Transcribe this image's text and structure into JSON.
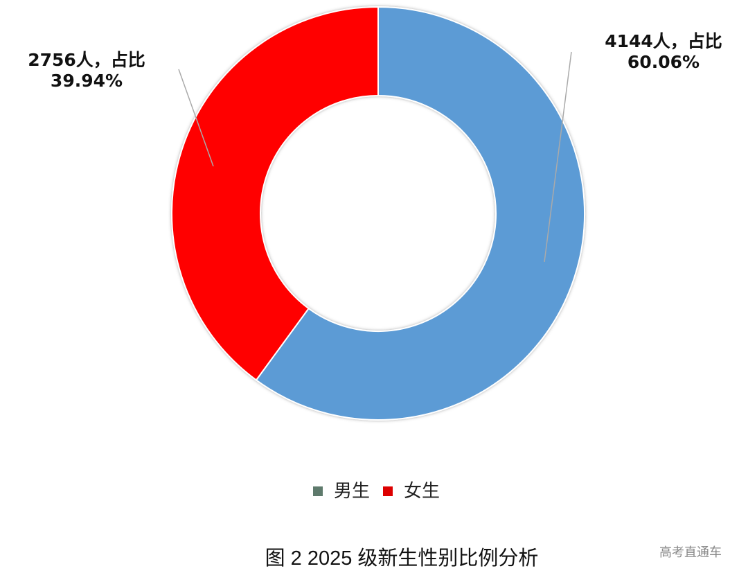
{
  "chart_data": {
    "type": "pie",
    "title": "图 2 2025 级新生性别比例分析",
    "watermark": "高考直通车",
    "categories": [
      "男生",
      "女生"
    ],
    "values": [
      4144,
      2756
    ],
    "value_labels": [
      "4144人，占比 60.06%",
      "2756人，占比 39.94%"
    ],
    "colors": [
      "#5b9bd5",
      "#ff0000"
    ],
    "legend_colors": [
      "#5e7a6c",
      "#dd0000"
    ]
  }
}
